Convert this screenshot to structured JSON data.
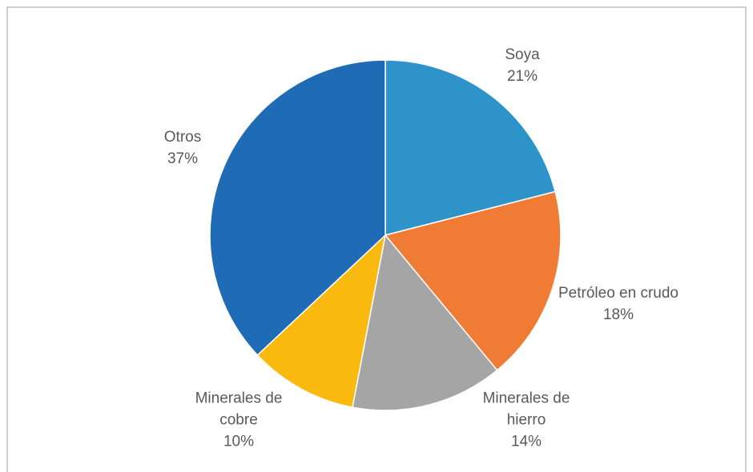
{
  "chart_data": {
    "type": "pie",
    "categories": [
      "Soya",
      "Petróleo en crudo",
      "Minerales de hierro",
      "Minerales de cobre",
      "Otros"
    ],
    "values": [
      21,
      18,
      14,
      10,
      37
    ],
    "value_labels": [
      "21%",
      "18%",
      "14%",
      "10%",
      "37%"
    ],
    "colors": [
      "#2e93c9",
      "#ef7b34",
      "#a5a5a5",
      "#f9b90f",
      "#1f6bb5"
    ]
  }
}
